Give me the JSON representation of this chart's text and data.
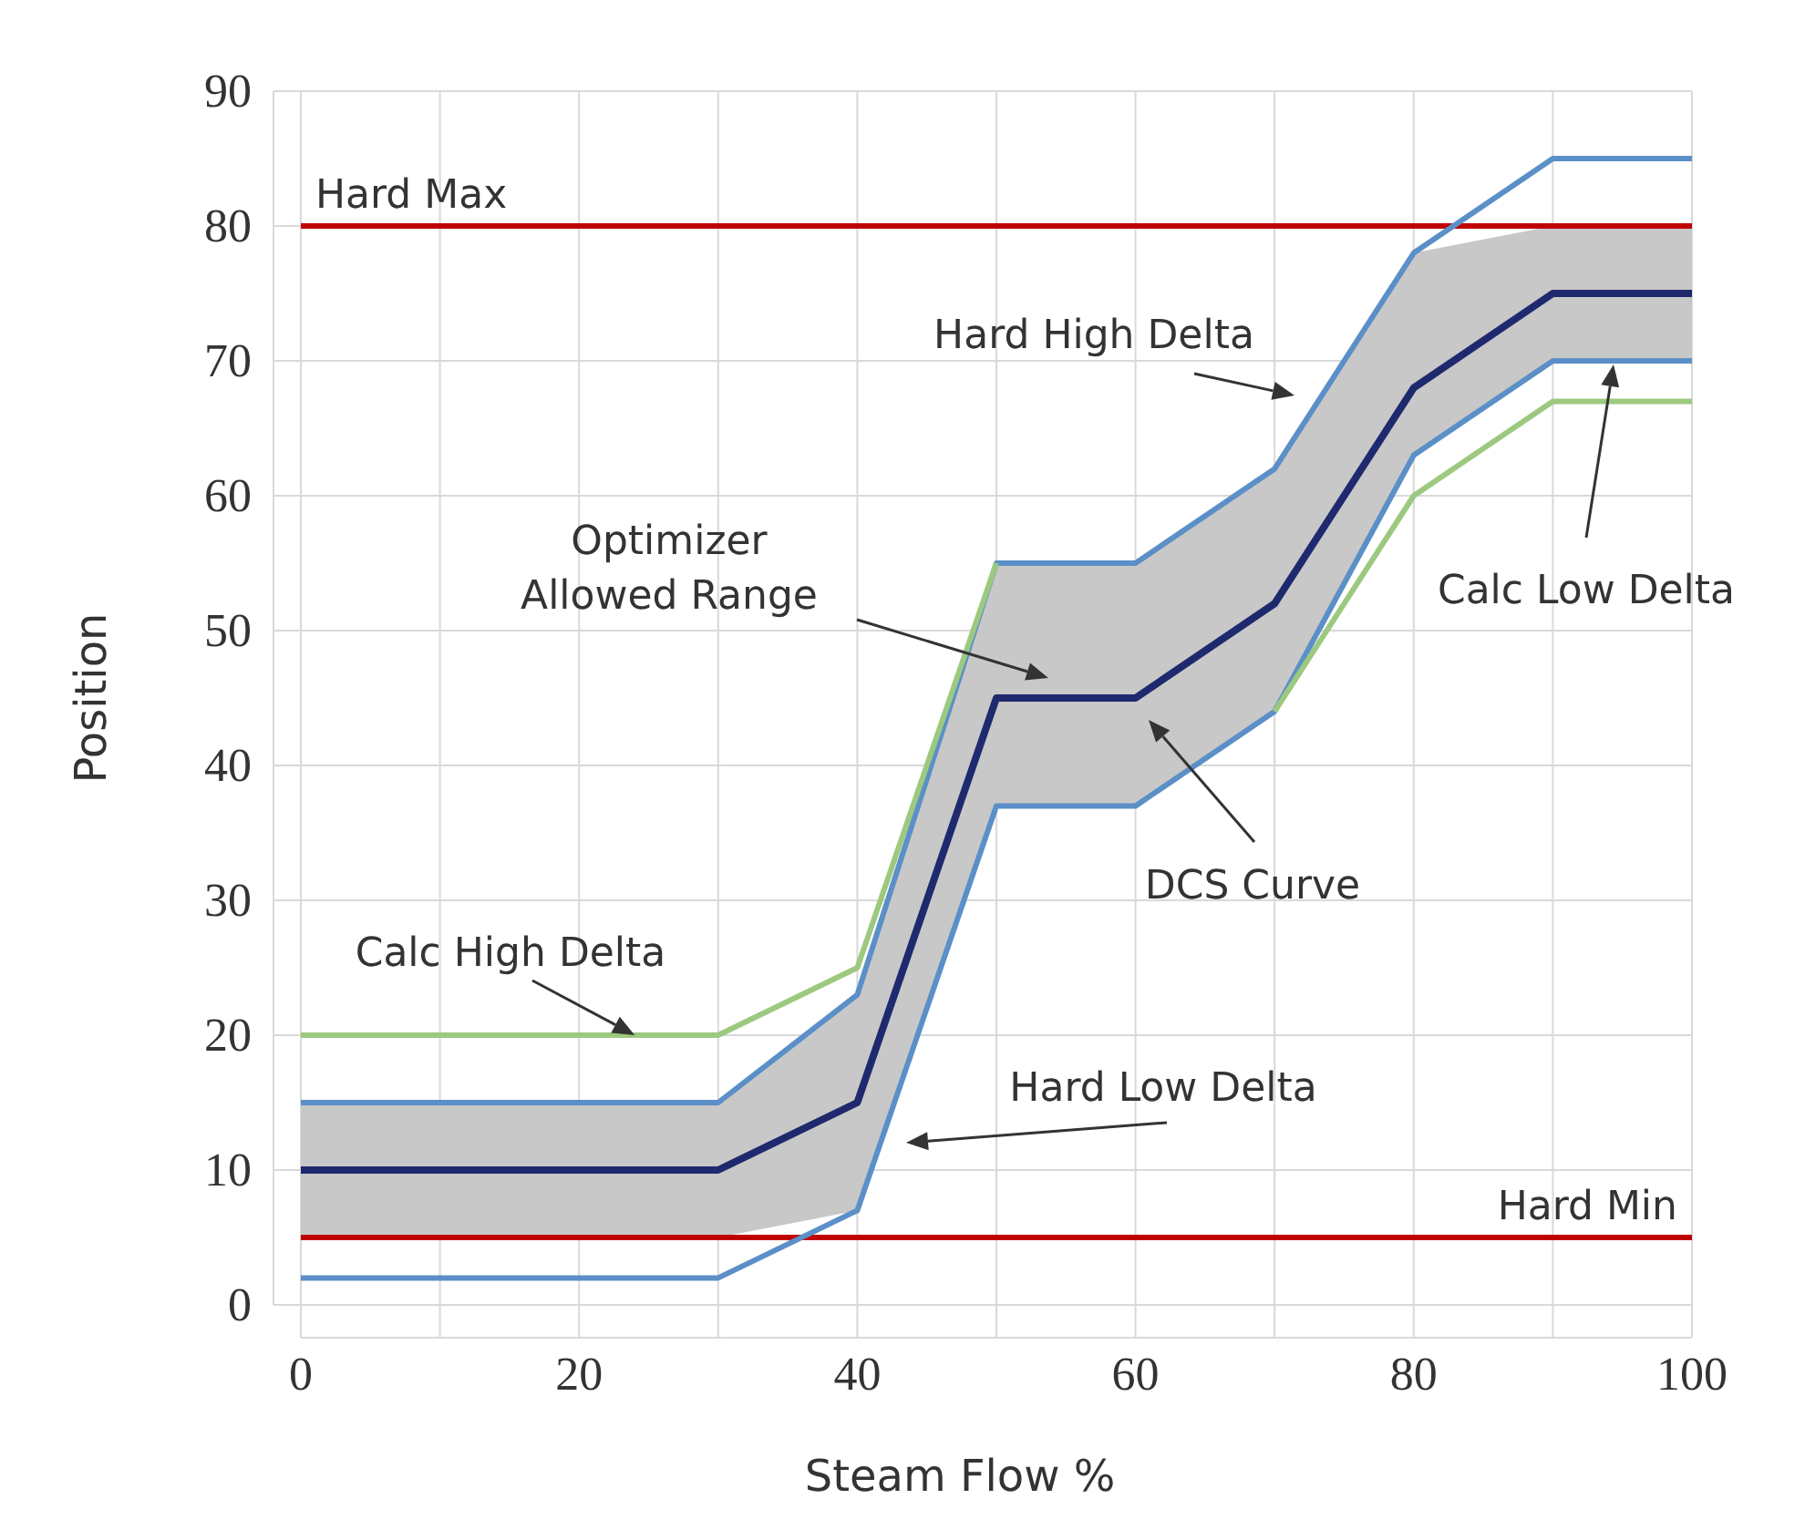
{
  "chart_data": {
    "type": "line",
    "xlabel": "Steam Flow %",
    "ylabel": "Position",
    "xlim": [
      0,
      100
    ],
    "ylim": [
      0,
      90
    ],
    "xticks": [
      0,
      {
        "value": 10,
        "label": null
      },
      20,
      {
        "value": 30,
        "label": null
      },
      40,
      {
        "value": 50,
        "label": null
      },
      60,
      {
        "value": 70,
        "label": null
      },
      80,
      {
        "value": 90,
        "label": null
      },
      100
    ],
    "yticks": [
      0,
      10,
      20,
      30,
      40,
      50,
      60,
      70,
      80,
      90
    ],
    "grid": true,
    "marker": "none",
    "line_style": "solid",
    "x": [
      0,
      10,
      20,
      30,
      40,
      50,
      60,
      70,
      80,
      90,
      100
    ],
    "series": [
      {
        "color": "#1f2a6e",
        "values": [
          10,
          10,
          10,
          10,
          15,
          45,
          45,
          52,
          68,
          75,
          75
        ],
        "lower": [
          5,
          5,
          5,
          5,
          7,
          37,
          37,
          44,
          63,
          70,
          70
        ],
        "upper": [
          15,
          15,
          15,
          15,
          23,
          55,
          55,
          62,
          78,
          80,
          80
        ]
      },
      {
        "color": "#9cc97f",
        "x": [
          0,
          30,
          40,
          50
        ],
        "values": [
          20,
          20,
          25,
          55
        ]
      },
      {
        "color": "#9cc97f",
        "x": [
          70,
          80,
          90,
          100
        ],
        "values": [
          44,
          60,
          67,
          67
        ]
      },
      {
        "color": "#5b8fc7",
        "values": [
          15,
          15,
          15,
          15,
          23,
          55,
          55,
          62,
          78,
          85,
          85
        ]
      },
      {
        "color": "#5b8fc7",
        "values": [
          2,
          2,
          2,
          2,
          7,
          37,
          37,
          44,
          63,
          70,
          70
        ]
      }
    ],
    "ref_lines": [
      {
        "axis": "y",
        "value": 80,
        "label": "Hard Max",
        "color": "#c00000"
      },
      {
        "axis": "y",
        "value": 5,
        "label": "Hard Min",
        "color": "#c00000"
      }
    ],
    "annotations": [
      "Hard High Delta",
      "Optimizer Allowed Range",
      "Calc Low Delta",
      "DCS Curve",
      {
        "text": "Calc High Delta",
        "x": 24,
        "y": 20
      },
      "Hard Low Delta"
    ]
  }
}
